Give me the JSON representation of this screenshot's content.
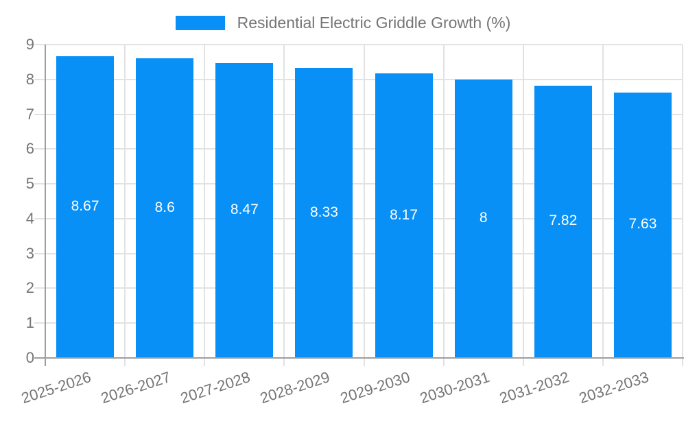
{
  "chart_data": {
    "type": "bar",
    "title": "Residential Electric Griddle Growth (%)",
    "categories": [
      "2025-2026",
      "2026-2027",
      "2027-2028",
      "2028-2029",
      "2029-2030",
      "2030-2031",
      "2031-2032",
      "2032-2033"
    ],
    "values": [
      8.67,
      8.6,
      8.47,
      8.33,
      8.17,
      8,
      7.82,
      7.63
    ],
    "value_labels": [
      "8.67",
      "8.6",
      "8.47",
      "8.33",
      "8.17",
      "8",
      "7.82",
      "7.63"
    ],
    "xlabel": "",
    "ylabel": "",
    "ylim": [
      0,
      9
    ],
    "yticks": [
      0,
      1,
      2,
      3,
      4,
      5,
      6,
      7,
      8,
      9
    ],
    "grid": "on",
    "legend_position": "top",
    "bar_color": "#0990f6",
    "text_color": "#757575",
    "grid_color": "#e2e2e2",
    "axis_color": "#9e9e9e",
    "value_label_color": "#ffffff"
  }
}
